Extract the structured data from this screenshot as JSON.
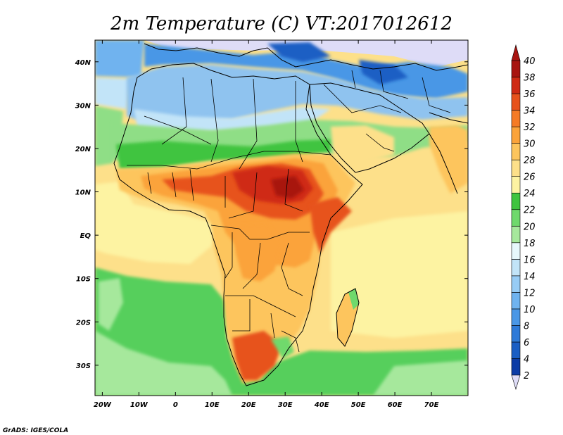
{
  "title": "2m Temperature (C) VT:2017012612",
  "credit": "GrADS: IGES/COLA",
  "x_axis": {
    "ticks": [
      "20W",
      "10W",
      "0",
      "10E",
      "20E",
      "30E",
      "40E",
      "50E",
      "60E",
      "70E"
    ],
    "values": [
      -20,
      -10,
      0,
      10,
      20,
      30,
      40,
      50,
      60,
      70
    ],
    "range": [
      -22,
      80
    ]
  },
  "y_axis": {
    "ticks": [
      "40N",
      "30N",
      "20N",
      "10N",
      "EQ",
      "10S",
      "20S",
      "30S"
    ],
    "values": [
      40,
      30,
      20,
      10,
      0,
      -10,
      -20,
      -30
    ],
    "range": [
      -37,
      45
    ]
  },
  "colorbar": {
    "labels": [
      "2",
      "4",
      "6",
      "8",
      "10",
      "12",
      "14",
      "16",
      "18",
      "20",
      "22",
      "24",
      "26",
      "28",
      "30",
      "32",
      "34",
      "36",
      "38",
      "40"
    ],
    "colors": [
      "#0c1a6e",
      "#0c3ca6",
      "#1a5ec4",
      "#2e7ad8",
      "#4a97e6",
      "#6fb3ef",
      "#97ccf5",
      "#c2e4f8",
      "#e6f7fb",
      "#a6e89c",
      "#6fd96c",
      "#3fc43f",
      "#fdf3a2",
      "#fde08a",
      "#fdc55d",
      "#fba33a",
      "#f57b25",
      "#e7521c",
      "#cf2a14",
      "#a81410",
      "#7a0a0a"
    ],
    "low_end_color": "#dedcf7",
    "high_end_color": "#a81410"
  },
  "colors": {
    "ocean_south_atlantic": "#56cf5c",
    "ocean_tropical": "#fde08a",
    "mediterranean": "#dedcf7",
    "north_africa": "#8fc3ef",
    "sahel": "#8fde86",
    "hot_core": "#cf2a14",
    "border": "#000000"
  }
}
